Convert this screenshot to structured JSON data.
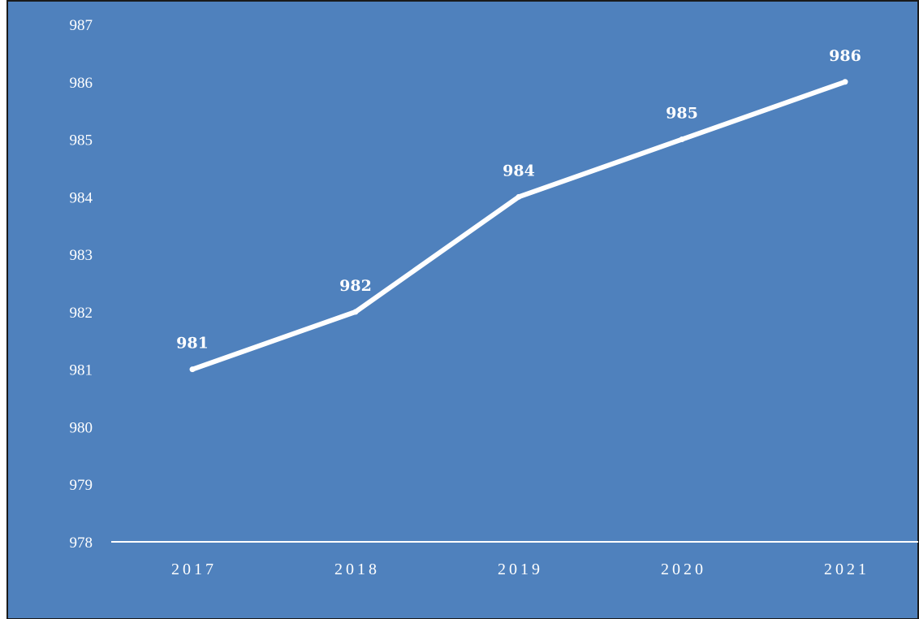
{
  "chart_data": {
    "type": "line",
    "categories": [
      "2017",
      "2018",
      "2019",
      "2020",
      "2021"
    ],
    "values": [
      981,
      982,
      984,
      985,
      986
    ],
    "data_labels": [
      "981",
      "982",
      "984",
      "985",
      "986"
    ],
    "y_ticks": [
      "978",
      "979",
      "980",
      "981",
      "982",
      "983",
      "984",
      "985",
      "986",
      "987"
    ],
    "ylim": [
      978,
      987
    ],
    "title": "",
    "xlabel": "",
    "ylabel": "",
    "grid": false,
    "drop_lines": true,
    "colors": {
      "background": "#4f81bd",
      "line": "#ffffff",
      "frame": "#1a1a1a",
      "axis": "#ffffff"
    }
  }
}
